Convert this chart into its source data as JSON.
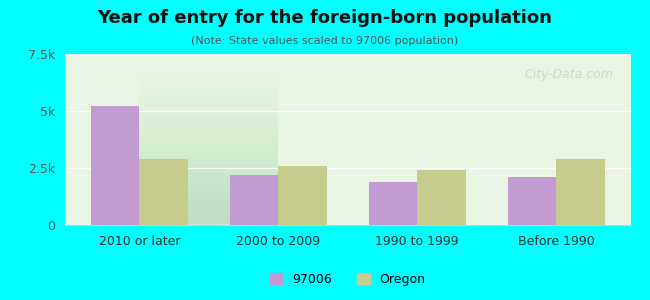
{
  "title": "Year of entry for the foreign-born population",
  "subtitle": "(Note: State values scaled to 97006 population)",
  "categories": [
    "2010 or later",
    "2000 to 2009",
    "1990 to 1999",
    "Before 1990"
  ],
  "values_97006": [
    5200,
    2200,
    1900,
    2100
  ],
  "values_oregon": [
    2900,
    2600,
    2400,
    2900
  ],
  "color_97006": "#c39bd3",
  "color_oregon": "#c5cc8e",
  "ylim": [
    0,
    7500
  ],
  "yticks": [
    0,
    2500,
    5000,
    7500
  ],
  "ytick_labels": [
    "0",
    "2.5k",
    "5k",
    "7.5k"
  ],
  "background_color": "#00ffff",
  "plot_bg_top": "#f0fff0",
  "plot_bg_bottom": "#ffffff",
  "legend_97006": "97006",
  "legend_oregon": "Oregon",
  "bar_width": 0.35,
  "watermark": "City-Data.com"
}
